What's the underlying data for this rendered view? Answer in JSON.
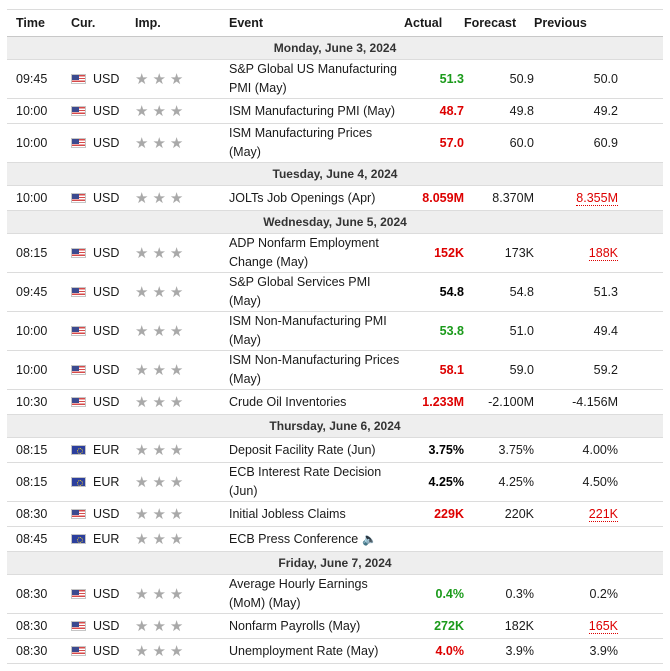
{
  "headers": {
    "time": "Time",
    "cur": "Cur.",
    "imp": "Imp.",
    "event": "Event",
    "actual": "Actual",
    "forecast": "Forecast",
    "previous": "Previous"
  },
  "stars": "★★★",
  "days": [
    {
      "label": "Monday, June 3, 2024",
      "rows": [
        {
          "time": "09:45",
          "flag": "us",
          "cur": "USD",
          "event": "S&P Global US Manufacturing PMI (May)",
          "actual": "51.3",
          "actual_color": "green",
          "forecast": "50.9",
          "previous": "50.0",
          "previous_style": "plain"
        },
        {
          "time": "10:00",
          "flag": "us",
          "cur": "USD",
          "event": "ISM Manufacturing PMI (May)",
          "actual": "48.7",
          "actual_color": "red",
          "forecast": "49.8",
          "previous": "49.2",
          "previous_style": "plain"
        },
        {
          "time": "10:00",
          "flag": "us",
          "cur": "USD",
          "event": "ISM Manufacturing Prices (May)",
          "actual": "57.0",
          "actual_color": "red",
          "forecast": "60.0",
          "previous": "60.9",
          "previous_style": "plain"
        }
      ]
    },
    {
      "label": "Tuesday, June 4, 2024",
      "rows": [
        {
          "time": "10:00",
          "flag": "us",
          "cur": "USD",
          "event": "JOLTs Job Openings (Apr)",
          "actual": "8.059M",
          "actual_color": "red",
          "forecast": "8.370M",
          "previous": "8.355M",
          "previous_style": "revised"
        }
      ]
    },
    {
      "label": "Wednesday, June 5, 2024",
      "rows": [
        {
          "time": "08:15",
          "flag": "us",
          "cur": "USD",
          "event": "ADP Nonfarm Employment Change (May)",
          "actual": "152K",
          "actual_color": "red",
          "forecast": "173K",
          "previous": "188K",
          "previous_style": "revised"
        },
        {
          "time": "09:45",
          "flag": "us",
          "cur": "USD",
          "event": "S&P Global Services PMI (May)",
          "actual": "54.8",
          "actual_color": "black",
          "forecast": "54.8",
          "previous": "51.3",
          "previous_style": "plain"
        },
        {
          "time": "10:00",
          "flag": "us",
          "cur": "USD",
          "event": "ISM Non-Manufacturing PMI (May)",
          "actual": "53.8",
          "actual_color": "green",
          "forecast": "51.0",
          "previous": "49.4",
          "previous_style": "plain"
        },
        {
          "time": "10:00",
          "flag": "us",
          "cur": "USD",
          "event": "ISM Non-Manufacturing Prices (May)",
          "actual": "58.1",
          "actual_color": "red",
          "forecast": "59.0",
          "previous": "59.2",
          "previous_style": "plain"
        },
        {
          "time": "10:30",
          "flag": "us",
          "cur": "USD",
          "event": "Crude Oil Inventories",
          "actual": "1.233M",
          "actual_color": "red",
          "forecast": "-2.100M",
          "previous": "-4.156M",
          "previous_style": "plain"
        }
      ]
    },
    {
      "label": "Thursday, June 6, 2024",
      "rows": [
        {
          "time": "08:15",
          "flag": "eu",
          "cur": "EUR",
          "event": "Deposit Facility Rate (Jun)",
          "actual": "3.75%",
          "actual_color": "black",
          "forecast": "3.75%",
          "previous": "4.00%",
          "previous_style": "plain"
        },
        {
          "time": "08:15",
          "flag": "eu",
          "cur": "EUR",
          "event": "ECB Interest Rate Decision (Jun)",
          "actual": "4.25%",
          "actual_color": "black",
          "forecast": "4.25%",
          "previous": "4.50%",
          "previous_style": "plain"
        },
        {
          "time": "08:30",
          "flag": "us",
          "cur": "USD",
          "event": "Initial Jobless Claims",
          "actual": "229K",
          "actual_color": "red",
          "forecast": "220K",
          "previous": "221K",
          "previous_style": "revised"
        },
        {
          "time": "08:45",
          "flag": "eu",
          "cur": "EUR",
          "event": "ECB Press Conference",
          "speaker": true,
          "actual": "",
          "actual_color": "black",
          "forecast": "",
          "previous": "",
          "previous_style": "plain"
        }
      ]
    },
    {
      "label": "Friday, June 7, 2024",
      "rows": [
        {
          "time": "08:30",
          "flag": "us",
          "cur": "USD",
          "event": "Average Hourly Earnings (MoM) (May)",
          "actual": "0.4%",
          "actual_color": "green",
          "forecast": "0.3%",
          "previous": "0.2%",
          "previous_style": "plain"
        },
        {
          "time": "08:30",
          "flag": "us",
          "cur": "USD",
          "event": "Nonfarm Payrolls (May)",
          "actual": "272K",
          "actual_color": "green",
          "forecast": "182K",
          "previous": "165K",
          "previous_style": "revised"
        },
        {
          "time": "08:30",
          "flag": "us",
          "cur": "USD",
          "event": "Unemployment Rate (May)",
          "actual": "4.0%",
          "actual_color": "red",
          "forecast": "3.9%",
          "previous": "3.9%",
          "previous_style": "plain"
        }
      ]
    }
  ]
}
